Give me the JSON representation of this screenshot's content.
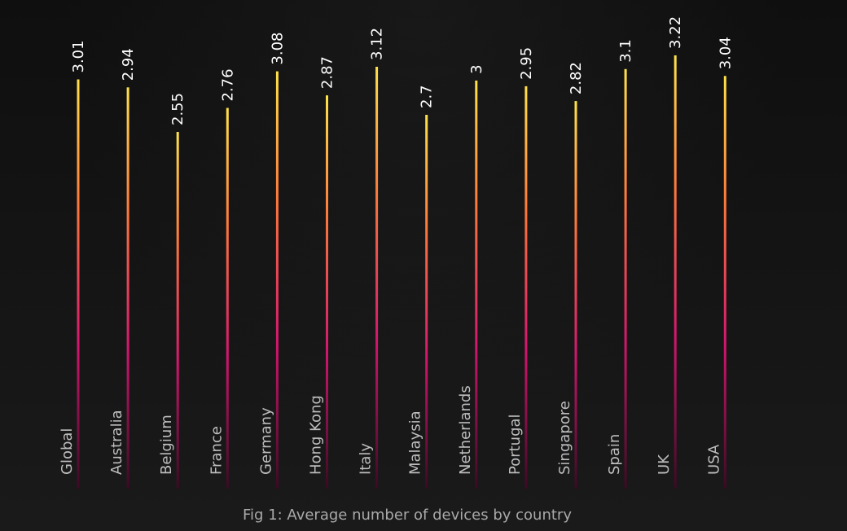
{
  "chart_data": {
    "type": "bar",
    "orientation": "vertical",
    "categories": [
      "Global",
      "Australia",
      "Belgium",
      "France",
      "Germany",
      "Hong Kong",
      "Italy",
      "Malaysia",
      "Netherlands",
      "Portugal",
      "Singapore",
      "Spain",
      "UK",
      "USA"
    ],
    "values": [
      3.01,
      2.94,
      2.55,
      2.76,
      3.08,
      2.87,
      3.12,
      2.7,
      3,
      2.95,
      2.82,
      3.1,
      3.22,
      3.04
    ],
    "value_labels": [
      "3.01",
      "2.94",
      "2.55",
      "2.76",
      "3.08",
      "2.87",
      "3.12",
      "2.7",
      "3",
      "2.95",
      "2.82",
      "3.1",
      "3.22",
      "3.04"
    ],
    "title": "",
    "xlabel": "",
    "ylabel": "",
    "ylim": [
      0,
      3.3
    ],
    "grid": false,
    "legend": "none",
    "caption": "Fig 1: Average number of devices by country",
    "colors": {
      "background": "#141414",
      "bar_top": "#ffe14a",
      "bar_mid": "#ff7a3a",
      "bar_low": "#d4156e",
      "bar_bottom": "#3a0a22",
      "value_text": "#ffffff",
      "category_text": "#bdbdbd",
      "caption_text": "#a9a9a9"
    }
  }
}
